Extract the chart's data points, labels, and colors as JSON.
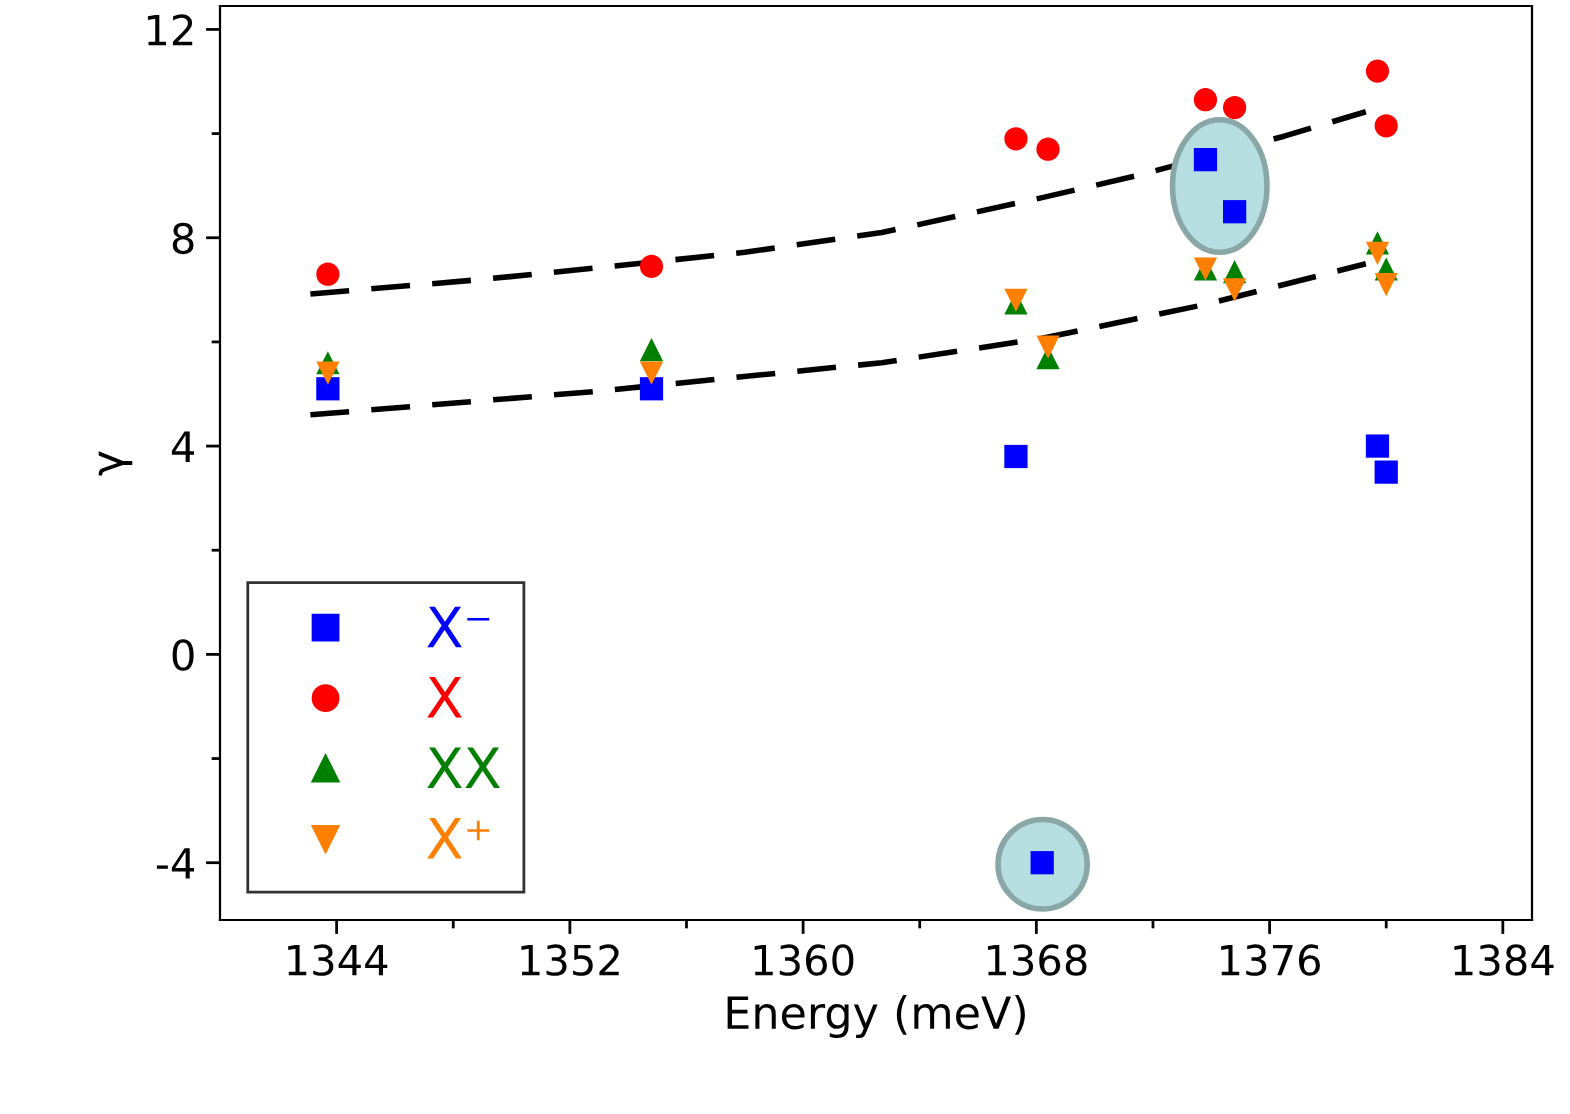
{
  "chart_data": {
    "type": "scatter",
    "xlabel": "Energy (meV)",
    "ylabel": "γ",
    "xlim": [
      1340,
      1385
    ],
    "ylim": [
      -5.1,
      12.45
    ],
    "xticks": [
      1344,
      {
        "value": 1348,
        "label": null
      },
      1352,
      {
        "value": 1356,
        "label": null
      },
      1360,
      {
        "value": 1364,
        "label": null
      },
      1368,
      {
        "value": 1372,
        "label": null
      },
      1376,
      {
        "value": 1380,
        "label": null
      },
      1384
    ],
    "yticks": [
      -4,
      {
        "value": -2,
        "label": null
      },
      0,
      {
        "value": 2,
        "label": null
      },
      4,
      {
        "value": 6,
        "label": null
      },
      8,
      {
        "value": 10,
        "label": null
      },
      12
    ],
    "grid": false,
    "legend": "bottom left",
    "series": [
      {
        "name": "X⁻",
        "color": "#0000ff",
        "marker": "square",
        "x": [
          1343.7,
          1354.8,
          1367.3,
          1373.8,
          1374.8,
          1379.7,
          1380.0,
          1368.2
        ],
        "values": [
          5.1,
          5.1,
          3.8,
          9.5,
          8.5,
          4.0,
          3.5,
          -4.0
        ]
      },
      {
        "name": "X",
        "color": "#ff0000",
        "marker": "circle",
        "x": [
          1343.7,
          1354.8,
          1367.3,
          1368.4,
          1373.8,
          1374.8,
          1379.7,
          1380.0
        ],
        "values": [
          7.3,
          7.45,
          9.9,
          9.7,
          10.65,
          10.5,
          11.2,
          10.15
        ]
      },
      {
        "name": "XX",
        "color": "#008000",
        "marker": "triangle",
        "x": [
          1343.7,
          1354.8,
          1367.3,
          1368.4,
          1373.8,
          1374.8,
          1379.7,
          1380.0
        ],
        "values": [
          5.6,
          5.85,
          6.75,
          5.7,
          7.4,
          7.35,
          7.9,
          7.4
        ]
      },
      {
        "name": "X⁺",
        "color": "#ff8000",
        "marker": "triangle_down",
        "x": [
          1343.7,
          1354.8,
          1367.3,
          1368.4,
          1373.8,
          1374.8,
          1379.7,
          1380.0
        ],
        "values": [
          5.4,
          5.4,
          6.8,
          5.9,
          7.4,
          7.0,
          7.7,
          7.1
        ]
      },
      {
        "type": "line",
        "color": "#000000",
        "line_style": "dashed",
        "marker": "none",
        "x": [
          1343.1,
          1349,
          1352.9,
          1358,
          1362.7,
          1368.2,
          1371.5,
          1376.5,
          1379.3
        ],
        "values": [
          6.92,
          7.2,
          7.42,
          7.72,
          8.1,
          8.77,
          9.2,
          9.95,
          10.42
        ]
      },
      {
        "type": "line",
        "color": "#000000",
        "line_style": "dashed",
        "marker": "none",
        "x": [
          1343.1,
          1352.9,
          1362.7,
          1368.2,
          1373.8,
          1379.3
        ],
        "values": [
          4.6,
          5.05,
          5.6,
          6.07,
          6.72,
          7.5
        ]
      }
    ]
  }
}
